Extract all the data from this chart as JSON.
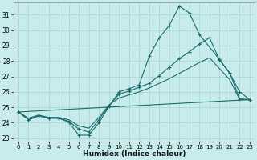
{
  "xlabel": "Humidex (Indice chaleur)",
  "bg_color": "#c8ecec",
  "grid_color": "#a8d4d4",
  "line_color": "#1a6b6b",
  "xlim": [
    -0.5,
    23.5
  ],
  "ylim": [
    22.8,
    31.8
  ],
  "yticks": [
    23,
    24,
    25,
    26,
    27,
    28,
    29,
    30,
    31
  ],
  "xticks": [
    0,
    1,
    2,
    3,
    4,
    5,
    6,
    7,
    8,
    9,
    10,
    11,
    12,
    13,
    14,
    15,
    16,
    17,
    18,
    19,
    20,
    21,
    22,
    23
  ],
  "line1_x": [
    0,
    1,
    2,
    3,
    4,
    5,
    6,
    7,
    8,
    9,
    10,
    11,
    12,
    13,
    14,
    15,
    16,
    17,
    18,
    20,
    21,
    22,
    23
  ],
  "line1_y": [
    24.7,
    24.2,
    24.45,
    24.3,
    24.3,
    24.05,
    23.2,
    23.2,
    24.0,
    25.05,
    26.0,
    26.2,
    26.45,
    28.3,
    29.5,
    30.3,
    31.55,
    31.1,
    29.7,
    28.1,
    27.2,
    26.0,
    25.5
  ],
  "line2_x": [
    0,
    1,
    2,
    3,
    4,
    5,
    6,
    7,
    8,
    9,
    10,
    11,
    12,
    13,
    14,
    15,
    16,
    17,
    18,
    19,
    20,
    21,
    22,
    23
  ],
  "line2_y": [
    24.7,
    24.2,
    24.45,
    24.3,
    24.3,
    24.1,
    23.6,
    23.4,
    24.2,
    25.1,
    25.85,
    26.05,
    26.3,
    26.55,
    27.05,
    27.6,
    28.15,
    28.6,
    29.1,
    29.5,
    28.05,
    27.25,
    25.55,
    25.5
  ],
  "line3_x": [
    0,
    1,
    2,
    3,
    4,
    5,
    6,
    7,
    8,
    9,
    10,
    11,
    12,
    13,
    14,
    15,
    16,
    17,
    18,
    19,
    20,
    21,
    22,
    23
  ],
  "line3_y": [
    24.7,
    24.3,
    24.5,
    24.35,
    24.35,
    24.2,
    23.8,
    23.65,
    24.35,
    25.15,
    25.6,
    25.8,
    26.0,
    26.25,
    26.55,
    26.85,
    27.2,
    27.55,
    27.9,
    28.2,
    27.5,
    26.8,
    25.5,
    25.5
  ],
  "line4_x": [
    0,
    23
  ],
  "line4_y": [
    24.7,
    25.5
  ]
}
